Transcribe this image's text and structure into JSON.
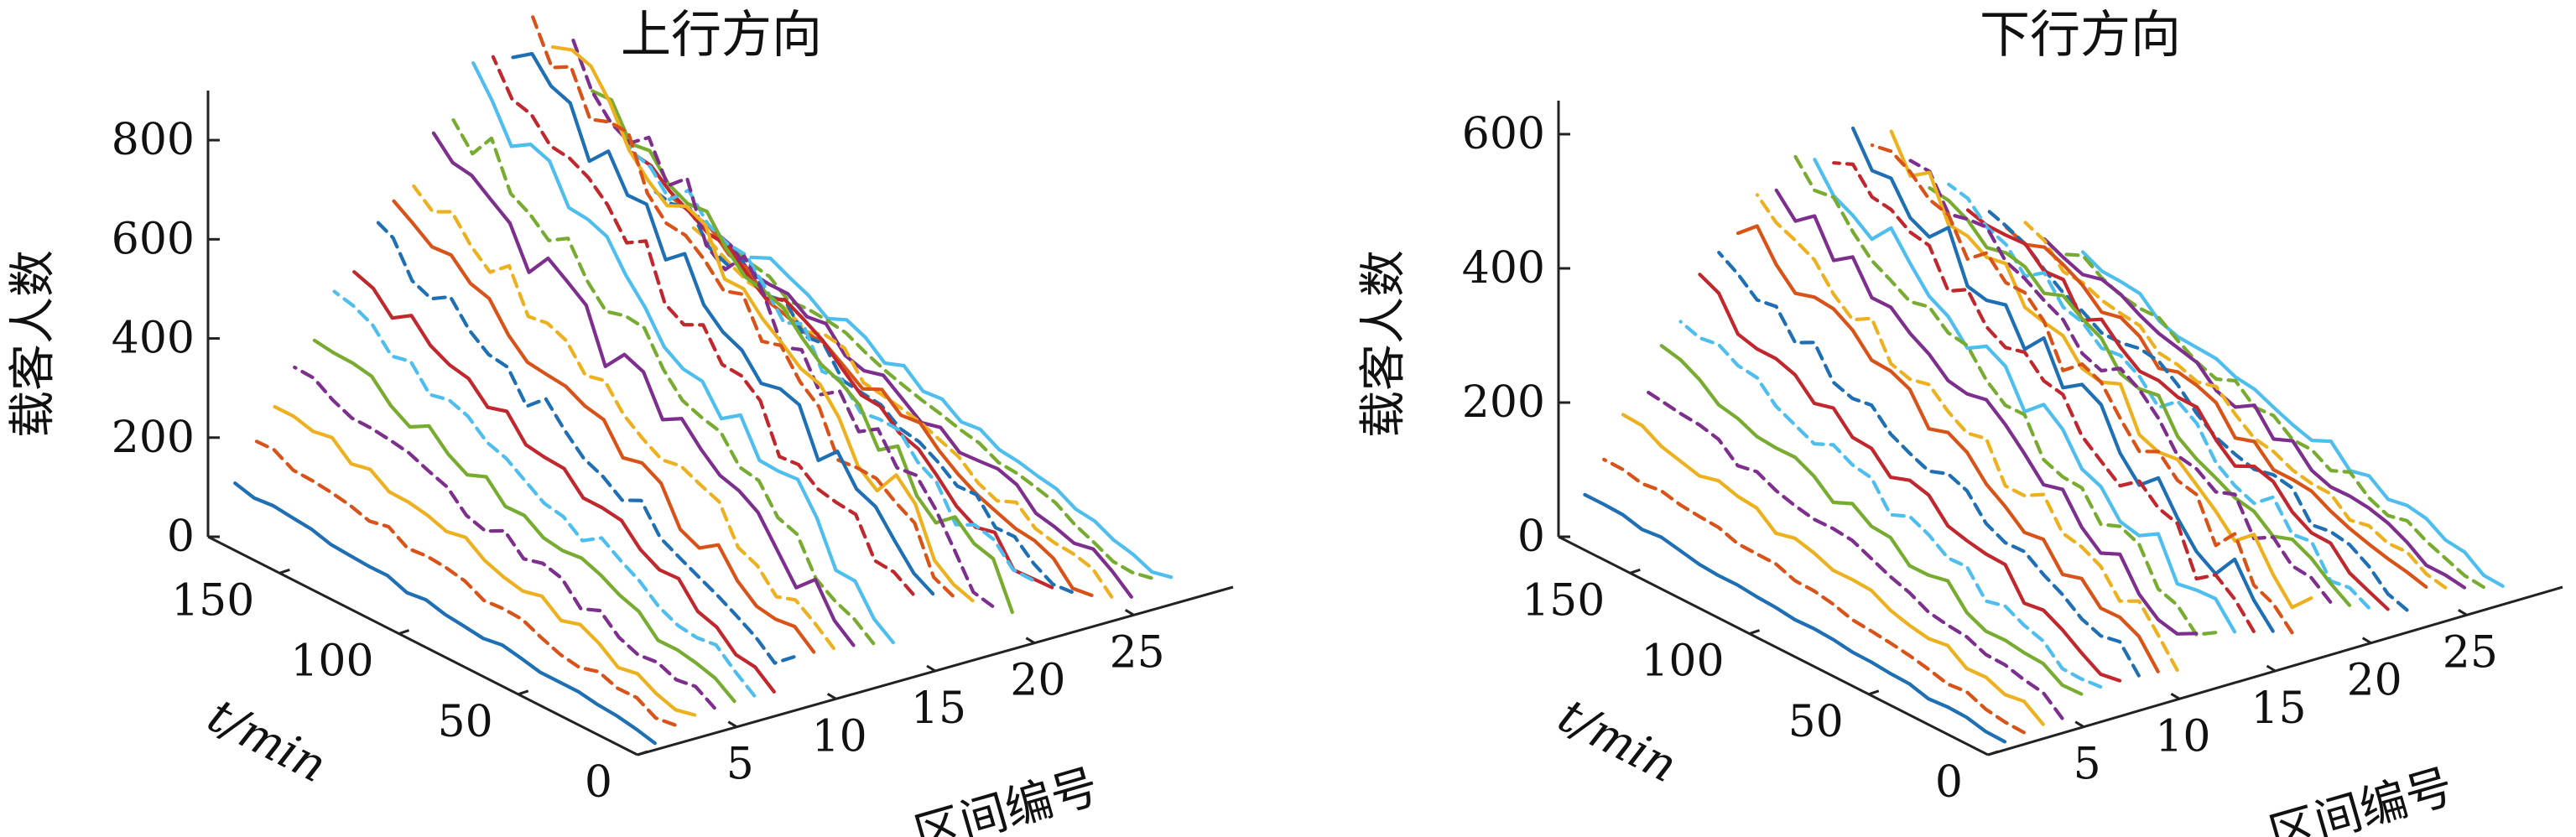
{
  "chart_data": [
    {
      "type": "line-3d-waterfall",
      "title": "上行方向",
      "zlabel": "载客人数",
      "ylabel": "t/min",
      "xlabel": "区间编号",
      "z_ticks": [
        "0",
        "200",
        "400",
        "600",
        "800"
      ],
      "y_ticks": [
        "0",
        "50",
        "100",
        "150"
      ],
      "x_ticks": [
        "5",
        "10",
        "15",
        "20",
        "25"
      ],
      "zlim": [
        0,
        900
      ],
      "ylim": [
        0,
        180
      ],
      "xlim": [
        0,
        30
      ],
      "grid": false,
      "sections": [
        1,
        2,
        3,
        4,
        5,
        6,
        7,
        8,
        9,
        10,
        11,
        12,
        13,
        14,
        15,
        16,
        17,
        18,
        19,
        20,
        21,
        22,
        23,
        24,
        25,
        26,
        27
      ],
      "time_steps": [
        1,
        9,
        17,
        25,
        33,
        41,
        49,
        57,
        65,
        73,
        81,
        89,
        97,
        105,
        113,
        121,
        129,
        137,
        145,
        153,
        161,
        169,
        177
      ],
      "peak_profile": [
        100,
        180,
        250,
        300,
        360,
        420,
        470,
        530,
        580,
        630,
        680,
        730,
        780,
        820,
        850,
        860,
        830,
        780,
        700,
        620,
        540,
        480,
        420,
        370,
        330,
        300,
        280
      ]
    },
    {
      "type": "line-3d-waterfall",
      "title": "下行方向",
      "zlabel": "载客人数",
      "ylabel": "t/min",
      "xlabel": "区间编号",
      "z_ticks": [
        "0",
        "200",
        "400",
        "600"
      ],
      "y_ticks": [
        "0",
        "50",
        "100",
        "150"
      ],
      "x_ticks": [
        "5",
        "10",
        "15",
        "20",
        "25"
      ],
      "zlim": [
        0,
        650
      ],
      "ylim": [
        0,
        180
      ],
      "xlim": [
        0,
        30
      ],
      "grid": false,
      "sections": [
        1,
        2,
        3,
        4,
        5,
        6,
        7,
        8,
        9,
        10,
        11,
        12,
        13,
        14,
        15,
        16,
        17,
        18,
        19,
        20,
        21,
        22,
        23,
        24,
        25,
        26,
        27
      ],
      "time_steps": [
        1,
        9,
        17,
        25,
        33,
        41,
        49,
        57,
        65,
        73,
        81,
        89,
        97,
        105,
        113,
        121,
        129,
        137,
        145,
        153,
        161,
        169,
        177
      ],
      "peak_profile": [
        60,
        110,
        160,
        200,
        240,
        280,
        320,
        360,
        400,
        420,
        440,
        450,
        460,
        470,
        480,
        470,
        450,
        420,
        390,
        360,
        330,
        300,
        280,
        260,
        240,
        220,
        200
      ]
    }
  ],
  "series_colors": [
    "#1f6fb5",
    "#d95319",
    "#edb120",
    "#7e2f8e",
    "#77ac30",
    "#4dbeee",
    "#c1272d"
  ]
}
